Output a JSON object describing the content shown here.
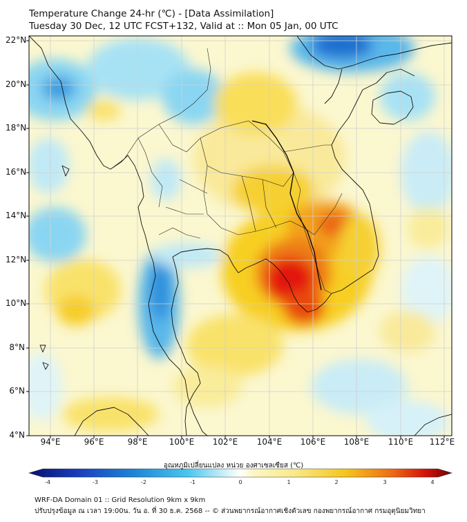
{
  "title": {
    "line1": "Temperature Change 24-hr (℃) - [Data Assimilation]",
    "line2": "Tuesday 30 Dec, 12 UTC FCST+132, Valid at :: Mon 05 Jan, 00 UTC"
  },
  "axes": {
    "lat_labels": [
      "22°N",
      "20°N",
      "18°N",
      "16°N",
      "14°N",
      "12°N",
      "10°N",
      "8°N",
      "6°N",
      "4°N"
    ],
    "lon_labels": [
      "94°E",
      "96°E",
      "98°E",
      "100°E",
      "102°E",
      "104°E",
      "106°E",
      "108°E",
      "110°E",
      "112°E"
    ],
    "lat_range": [
      4,
      22.3
    ],
    "lon_range": [
      93,
      112.3
    ]
  },
  "colorbar": {
    "title": "อุณหภูมิเปลี่ยนแปลง หน่วย องศาเซลเซียส (℃)",
    "ticks": [
      "-4",
      "-3",
      "-2",
      "-1",
      "0",
      "1",
      "2",
      "3",
      "4"
    ],
    "min": -4,
    "max": 4
  },
  "footer": {
    "line1": "WRF-DA Domain 01 :: Grid Resolution 9km x 9km",
    "line2": "ปรับปรุงข้อมูล ณ เวลา 19:00น. วัน อ. ที่ 30 ธ.ค. 2568 -- © ส่วนพยากรณ์อากาศเชิงตัวเลข กองพยากรณ์อากาศ กรมอุตุนิยมวิทยา"
  },
  "colors": {
    "ocean_neutral": "#fbf7c6",
    "warm_mid": "#f6d21e",
    "warm_strong": "#f08a1c",
    "hot": "#e3120b",
    "cool_mid": "#7fd0f0",
    "cool_strong": "#1d86d8",
    "coast": "#111111",
    "grid": "#d6d6d6"
  }
}
